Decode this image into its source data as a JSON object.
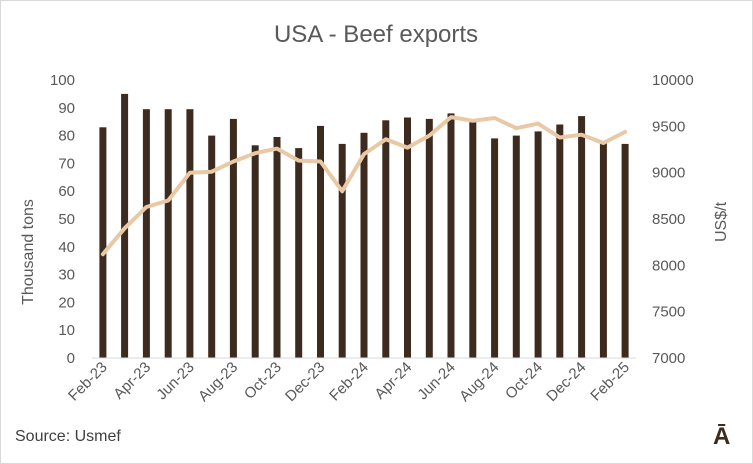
{
  "chart_data": {
    "type": "bar+line",
    "title": "USA - Beef exports",
    "ylabel": "Thousand tons",
    "y2label": "US$/t",
    "ylim": [
      0,
      100
    ],
    "y2lim": [
      7000,
      10000
    ],
    "yticks": [
      "0",
      "10",
      "20",
      "30",
      "40",
      "50",
      "60",
      "70",
      "80",
      "90",
      "100"
    ],
    "y2ticks": [
      "7000",
      "7500",
      "8000",
      "8500",
      "9000",
      "9500",
      "10000"
    ],
    "categories": [
      "Feb-23",
      "Mar-23",
      "Apr-23",
      "May-23",
      "Jun-23",
      "Jul-23",
      "Aug-23",
      "Sep-23",
      "Oct-23",
      "Nov-23",
      "Dec-23",
      "Jan-24",
      "Feb-24",
      "Mar-24",
      "Apr-24",
      "May-24",
      "Jun-24",
      "Jul-24",
      "Aug-24",
      "Sep-24",
      "Oct-24",
      "Nov-24",
      "Dec-24",
      "Jan-25",
      "Feb-25"
    ],
    "xtick_labels": [
      "Feb-23",
      "Apr-23",
      "Jun-23",
      "Aug-23",
      "Oct-23",
      "Dec-23",
      "Feb-24",
      "Apr-24",
      "Jun-24",
      "Aug-24",
      "Oct-24",
      "Dec-24",
      "Feb-25"
    ],
    "series": [
      {
        "type": "bar",
        "axis": "left",
        "color": "#3d2b1f",
        "values": [
          83,
          95,
          89.5,
          89.5,
          89.5,
          80,
          86,
          76.5,
          79.5,
          75.5,
          83.5,
          77,
          81,
          85.5,
          86.5,
          86,
          88,
          85,
          79,
          80,
          81.5,
          84,
          87,
          77.5,
          77
        ]
      },
      {
        "type": "line",
        "axis": "right",
        "color": "#e9c9a5",
        "values": [
          8120,
          8400,
          8630,
          8700,
          9000,
          9010,
          9120,
          9210,
          9260,
          9130,
          9120,
          8800,
          9200,
          9360,
          9270,
          9400,
          9600,
          9560,
          9590,
          9480,
          9530,
          9380,
          9410,
          9320,
          9440
        ]
      }
    ],
    "grid": false,
    "legend": "none"
  },
  "footer": {
    "source": "Source: Usmef",
    "logo": "Ā"
  }
}
